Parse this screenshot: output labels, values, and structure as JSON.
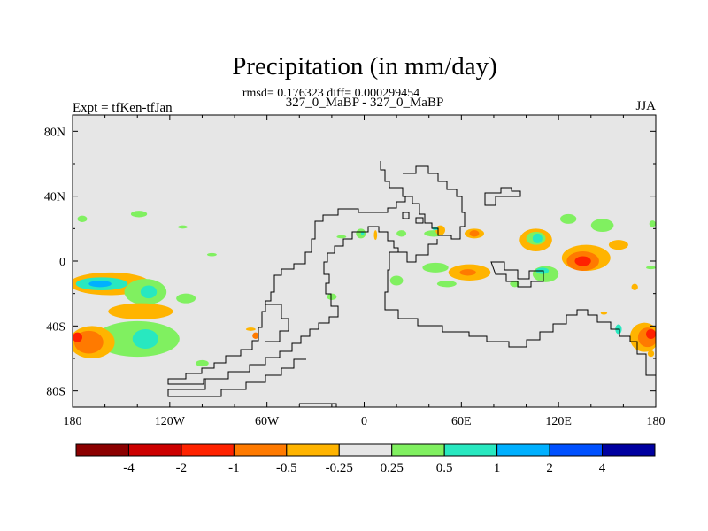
{
  "chart_data": {
    "type": "heatmap",
    "title": "Precipitation (in mm/day)",
    "stats_line": "rmsd= 0.176323 diff= 0.000299454",
    "left_label": "Expt = tfKen-tfJan",
    "center_label": "327_0_MaBP - 327_0_MaBP",
    "right_label": "JJA",
    "xaxis": {
      "range": [
        -180,
        180
      ],
      "ticks": [
        {
          "value": -180,
          "label": "180"
        },
        {
          "value": -120,
          "label": "120W"
        },
        {
          "value": -60,
          "label": "60W"
        },
        {
          "value": 0,
          "label": "0"
        },
        {
          "value": 60,
          "label": "60E"
        },
        {
          "value": 120,
          "label": "120E"
        },
        {
          "value": 180,
          "label": "180"
        }
      ]
    },
    "yaxis": {
      "range": [
        -90,
        90
      ],
      "ticks": [
        {
          "value": 80,
          "label": "80N"
        },
        {
          "value": 40,
          "label": "40N"
        },
        {
          "value": 0,
          "label": "0"
        },
        {
          "value": -40,
          "label": "40S"
        },
        {
          "value": -80,
          "label": "80S"
        }
      ]
    },
    "background_color": "#e6e6e6",
    "colorbar": {
      "colors": [
        "#8b0000",
        "#cc0000",
        "#ff2200",
        "#ff7a00",
        "#ffb400",
        "#e6e6e6",
        "#80f060",
        "#28e8c0",
        "#00b0ff",
        "#0050ff",
        "#0000a0"
      ],
      "labels": [
        "-4",
        "-2",
        "-1",
        "-0.5",
        "-0.25",
        "0.25",
        "0.5",
        "1",
        "2",
        "4"
      ]
    },
    "blobs": [
      {
        "lon": -157,
        "lat": -14,
        "rlon": 25,
        "rlat": 7,
        "color": "#ffb400"
      },
      {
        "lon": -162,
        "lat": -14,
        "rlon": 16,
        "rlat": 4,
        "color": "#28e8c0"
      },
      {
        "lon": -163,
        "lat": -14,
        "rlon": 7,
        "rlat": 2,
        "color": "#00b0ff"
      },
      {
        "lon": -135,
        "lat": -19,
        "rlon": 13,
        "rlat": 8,
        "color": "#80f060"
      },
      {
        "lon": -133,
        "lat": -19,
        "rlon": 5,
        "rlat": 4,
        "color": "#28e8c0"
      },
      {
        "lon": -110,
        "lat": -23,
        "rlon": 6,
        "rlat": 3,
        "color": "#80f060"
      },
      {
        "lon": -138,
        "lat": -31,
        "rlon": 20,
        "rlat": 5,
        "color": "#ffb400"
      },
      {
        "lon": -140,
        "lat": -48,
        "rlon": 26,
        "rlat": 11,
        "color": "#80f060"
      },
      {
        "lon": -135,
        "lat": -48,
        "rlon": 8,
        "rlat": 6,
        "color": "#28e8c0"
      },
      {
        "lon": -168,
        "lat": -50,
        "rlon": 14,
        "rlat": 10,
        "color": "#ffb400"
      },
      {
        "lon": -170,
        "lat": -50,
        "rlon": 9,
        "rlat": 7,
        "color": "#ff7a00"
      },
      {
        "lon": -177,
        "lat": -47,
        "rlon": 3,
        "rlat": 3,
        "color": "#ff2200"
      },
      {
        "lon": -174,
        "lat": 26,
        "rlon": 3,
        "rlat": 2,
        "color": "#80f060"
      },
      {
        "lon": -139,
        "lat": 29,
        "rlon": 5,
        "rlat": 2,
        "color": "#80f060"
      },
      {
        "lon": -112,
        "lat": 21,
        "rlon": 3,
        "rlat": 1,
        "color": "#80f060"
      },
      {
        "lon": -94,
        "lat": 4,
        "rlon": 3,
        "rlat": 1,
        "color": "#80f060"
      },
      {
        "lon": -70,
        "lat": -42,
        "rlon": 3,
        "rlat": 1,
        "color": "#ffb400"
      },
      {
        "lon": -100,
        "lat": -63,
        "rlon": 4,
        "rlat": 2,
        "color": "#80f060"
      },
      {
        "lon": -67,
        "lat": -46,
        "rlon": 2,
        "rlat": 2,
        "color": "#ff7a00"
      },
      {
        "lon": -20,
        "lat": -22,
        "rlon": 3,
        "rlat": 2,
        "color": "#80f060"
      },
      {
        "lon": -14,
        "lat": 15,
        "rlon": 3,
        "rlat": 1,
        "color": "#80f060"
      },
      {
        "lon": -2,
        "lat": 17,
        "rlon": 3,
        "rlat": 3,
        "color": "#80f060"
      },
      {
        "lon": -1,
        "lat": 17,
        "rlon": 1,
        "rlat": 1,
        "color": "#28e8c0"
      },
      {
        "lon": 7,
        "lat": 16,
        "rlon": 1,
        "rlat": 3,
        "color": "#ffb400"
      },
      {
        "lon": 23,
        "lat": 17,
        "rlon": 3,
        "rlat": 2,
        "color": "#80f060"
      },
      {
        "lon": 43,
        "lat": 17,
        "rlon": 6,
        "rlat": 2,
        "color": "#80f060"
      },
      {
        "lon": 47,
        "lat": 19,
        "rlon": 3,
        "rlat": 3,
        "color": "#ffb400"
      },
      {
        "lon": 44,
        "lat": 20,
        "rlon": 2,
        "rlat": 1,
        "color": "#28e8c0"
      },
      {
        "lon": 68,
        "lat": 17,
        "rlon": 6,
        "rlat": 3,
        "color": "#ffb400"
      },
      {
        "lon": 68,
        "lat": 17,
        "rlon": 3,
        "rlat": 2,
        "color": "#ff7a00"
      },
      {
        "lon": 44,
        "lat": -4,
        "rlon": 8,
        "rlat": 3,
        "color": "#80f060"
      },
      {
        "lon": 65,
        "lat": -7,
        "rlon": 13,
        "rlat": 5,
        "color": "#ffb400"
      },
      {
        "lon": 64,
        "lat": -7,
        "rlon": 5,
        "rlat": 2,
        "color": "#ff7a00"
      },
      {
        "lon": 20,
        "lat": -12,
        "rlon": 4,
        "rlat": 3,
        "color": "#80f060"
      },
      {
        "lon": 51,
        "lat": -14,
        "rlon": 6,
        "rlat": 2,
        "color": "#80f060"
      },
      {
        "lon": 93,
        "lat": -14,
        "rlon": 3,
        "rlat": 2,
        "color": "#80f060"
      },
      {
        "lon": 112,
        "lat": -8,
        "rlon": 8,
        "rlat": 5,
        "color": "#80f060"
      },
      {
        "lon": 110,
        "lat": -6,
        "rlon": 4,
        "rlat": 2,
        "color": "#28e8c0"
      },
      {
        "lon": 126,
        "lat": 26,
        "rlon": 5,
        "rlat": 3,
        "color": "#80f060"
      },
      {
        "lon": 147,
        "lat": 22,
        "rlon": 7,
        "rlat": 4,
        "color": "#80f060"
      },
      {
        "lon": 106,
        "lat": 13,
        "rlon": 10,
        "rlat": 7,
        "color": "#ffb400"
      },
      {
        "lon": 106,
        "lat": 14,
        "rlon": 6,
        "rlat": 4,
        "color": "#80f060"
      },
      {
        "lon": 107,
        "lat": 14,
        "rlon": 3,
        "rlat": 3,
        "color": "#28e8c0"
      },
      {
        "lon": 137,
        "lat": 2,
        "rlon": 15,
        "rlat": 8,
        "color": "#ffb400"
      },
      {
        "lon": 135,
        "lat": 0,
        "rlon": 10,
        "rlat": 6,
        "color": "#ff7a00"
      },
      {
        "lon": 135,
        "lat": 0,
        "rlon": 5,
        "rlat": 3,
        "color": "#ff2200"
      },
      {
        "lon": 157,
        "lat": 10,
        "rlon": 6,
        "rlat": 3,
        "color": "#ffb400"
      },
      {
        "lon": 177,
        "lat": -4,
        "rlon": 3,
        "rlat": 1,
        "color": "#80f060"
      },
      {
        "lon": 167,
        "lat": -16,
        "rlon": 2,
        "rlat": 2,
        "color": "#ffb400"
      },
      {
        "lon": 148,
        "lat": -32,
        "rlon": 2,
        "rlat": 1,
        "color": "#ffb400"
      },
      {
        "lon": 173,
        "lat": -47,
        "rlon": 9,
        "rlat": 9,
        "color": "#ffb400"
      },
      {
        "lon": 175,
        "lat": -47,
        "rlon": 6,
        "rlat": 6,
        "color": "#ff7a00"
      },
      {
        "lon": 177,
        "lat": -45,
        "rlon": 3,
        "rlat": 3,
        "color": "#ff2200"
      },
      {
        "lon": 157,
        "lat": -42,
        "rlon": 2,
        "rlat": 3,
        "color": "#28e8c0"
      },
      {
        "lon": 178,
        "lat": 23,
        "rlon": 2,
        "rlat": 2,
        "color": "#80f060"
      },
      {
        "lon": 177,
        "lat": -57,
        "rlon": 2,
        "rlat": 2,
        "color": "#ffb400"
      }
    ]
  }
}
